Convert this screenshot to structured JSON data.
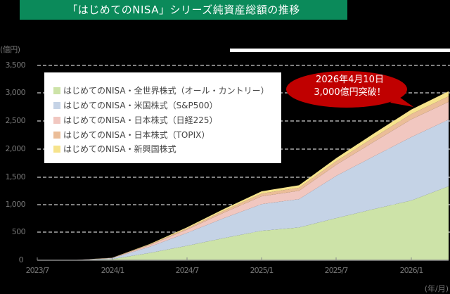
{
  "title": "「はじめてのNISA」シリーズ純資産総額の推移",
  "callout": {
    "line1": "2026年4月10日",
    "line2": "3,000億円突破！",
    "color": "#c00000"
  },
  "axes": {
    "y_unit": "(億円)",
    "x_unit": "(年/月)",
    "y_ticks": [
      "3,500",
      "3,000",
      "2,500",
      "2,000",
      "1,500",
      "1,000",
      "500",
      "0"
    ],
    "x_ticks": [
      "2023/7",
      "2024/1",
      "2024/7",
      "2025/1",
      "2025/7",
      "2026/1"
    ]
  },
  "legend": [
    {
      "label": "はじめてのNISA・全世界株式（オール・カントリー）",
      "color": "#cde3a8"
    },
    {
      "label": "はじめてのNISA・米国株式（S&P500）",
      "color": "#c5d3e6"
    },
    {
      "label": "はじめてのNISA・日本株式（日経225）",
      "color": "#f1c7c0"
    },
    {
      "label": "はじめてのNISA・日本株式（TOPIX）",
      "color": "#ebbd98"
    },
    {
      "label": "はじめてのNISA・新興国株式",
      "color": "#f6e38c"
    }
  ],
  "chart_data": {
    "type": "area",
    "stacked": true,
    "title": "「はじめてのNISA」シリーズ純資産総額の推移",
    "xlabel": "(年/月)",
    "ylabel": "(億円)",
    "ylim": [
      0,
      3500
    ],
    "y_ticks": [
      0,
      500,
      1000,
      1500,
      2000,
      2500,
      3000,
      3500
    ],
    "grid": "horizontal dashed",
    "legend_position": "upper left (inset)",
    "x": [
      "2023/7",
      "2023/10",
      "2024/1",
      "2024/4",
      "2024/7",
      "2024/10",
      "2025/1",
      "2025/4",
      "2025/7",
      "2025/10",
      "2026/1",
      "2026/4"
    ],
    "series": [
      {
        "name": "はじめてのNISA・全世界株式（オール・カントリー）",
        "values": [
          0,
          2,
          20,
          130,
          260,
          400,
          530,
          590,
          760,
          920,
          1075,
          1330
        ]
      },
      {
        "name": "はじめてのNISA・米国株式（S&P500）",
        "values": [
          0,
          2,
          15,
          110,
          230,
          360,
          480,
          510,
          760,
          950,
          1140,
          1200
        ]
      },
      {
        "name": "はじめてのNISA・日本株式（日経225）",
        "values": [
          0,
          1,
          5,
          30,
          60,
          100,
          140,
          150,
          200,
          260,
          320,
          320
        ]
      },
      {
        "name": "はじめてのNISA・日本株式（TOPIX）",
        "values": [
          0,
          0,
          2,
          10,
          20,
          35,
          50,
          55,
          65,
          80,
          95,
          100
        ]
      },
      {
        "name": "はじめてのNISA・新興国株式",
        "values": [
          0,
          0,
          2,
          10,
          20,
          30,
          40,
          45,
          55,
          70,
          80,
          90
        ]
      }
    ],
    "annotation": "2026年4月10日 3,000億円突破！"
  }
}
